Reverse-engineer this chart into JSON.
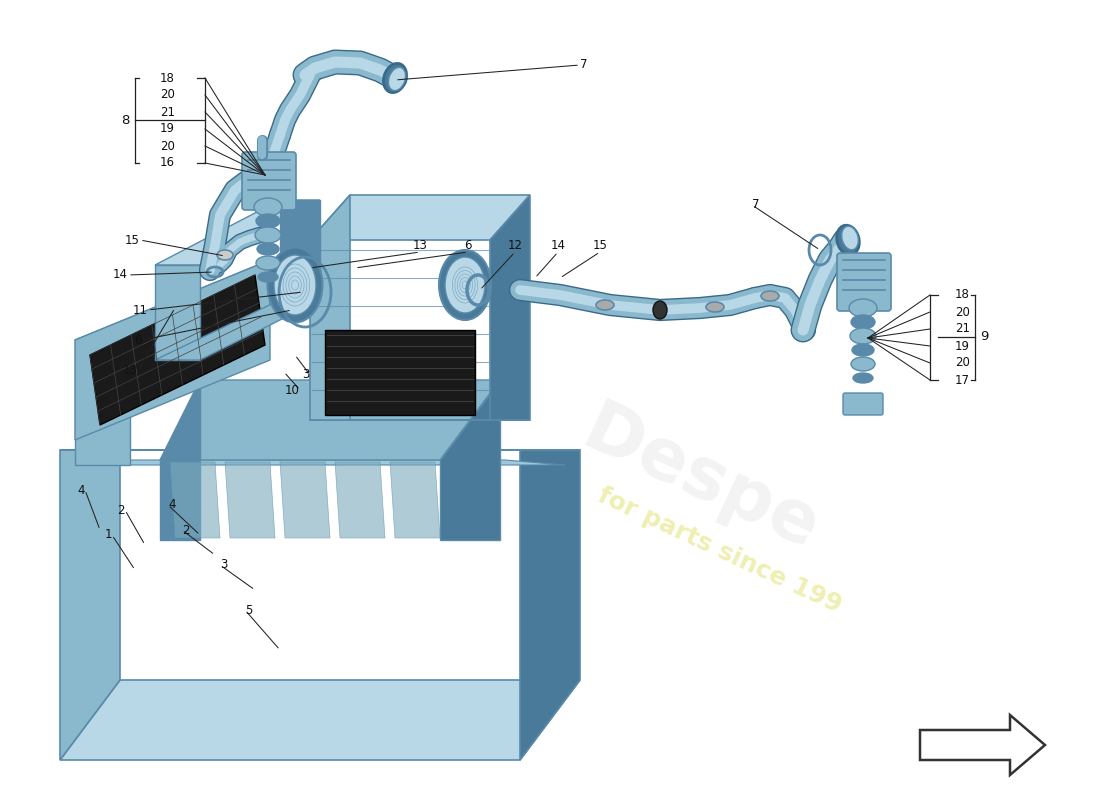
{
  "background_color": "#ffffff",
  "mc": "#8ab8cc",
  "dc": "#5a8aaa",
  "lc": "#b8d8e8",
  "sc": "#4a7a9a",
  "vdc": "#3a6a8a",
  "ec": "#2a4a6a",
  "black_part": "#222222",
  "grey_part": "#888888",
  "text_color": "#111111",
  "line_color": "#222222",
  "arrow_bg": "#ffffff",
  "wm_color": "#d8d8d8",
  "wm_yellow": "#d0cc40"
}
